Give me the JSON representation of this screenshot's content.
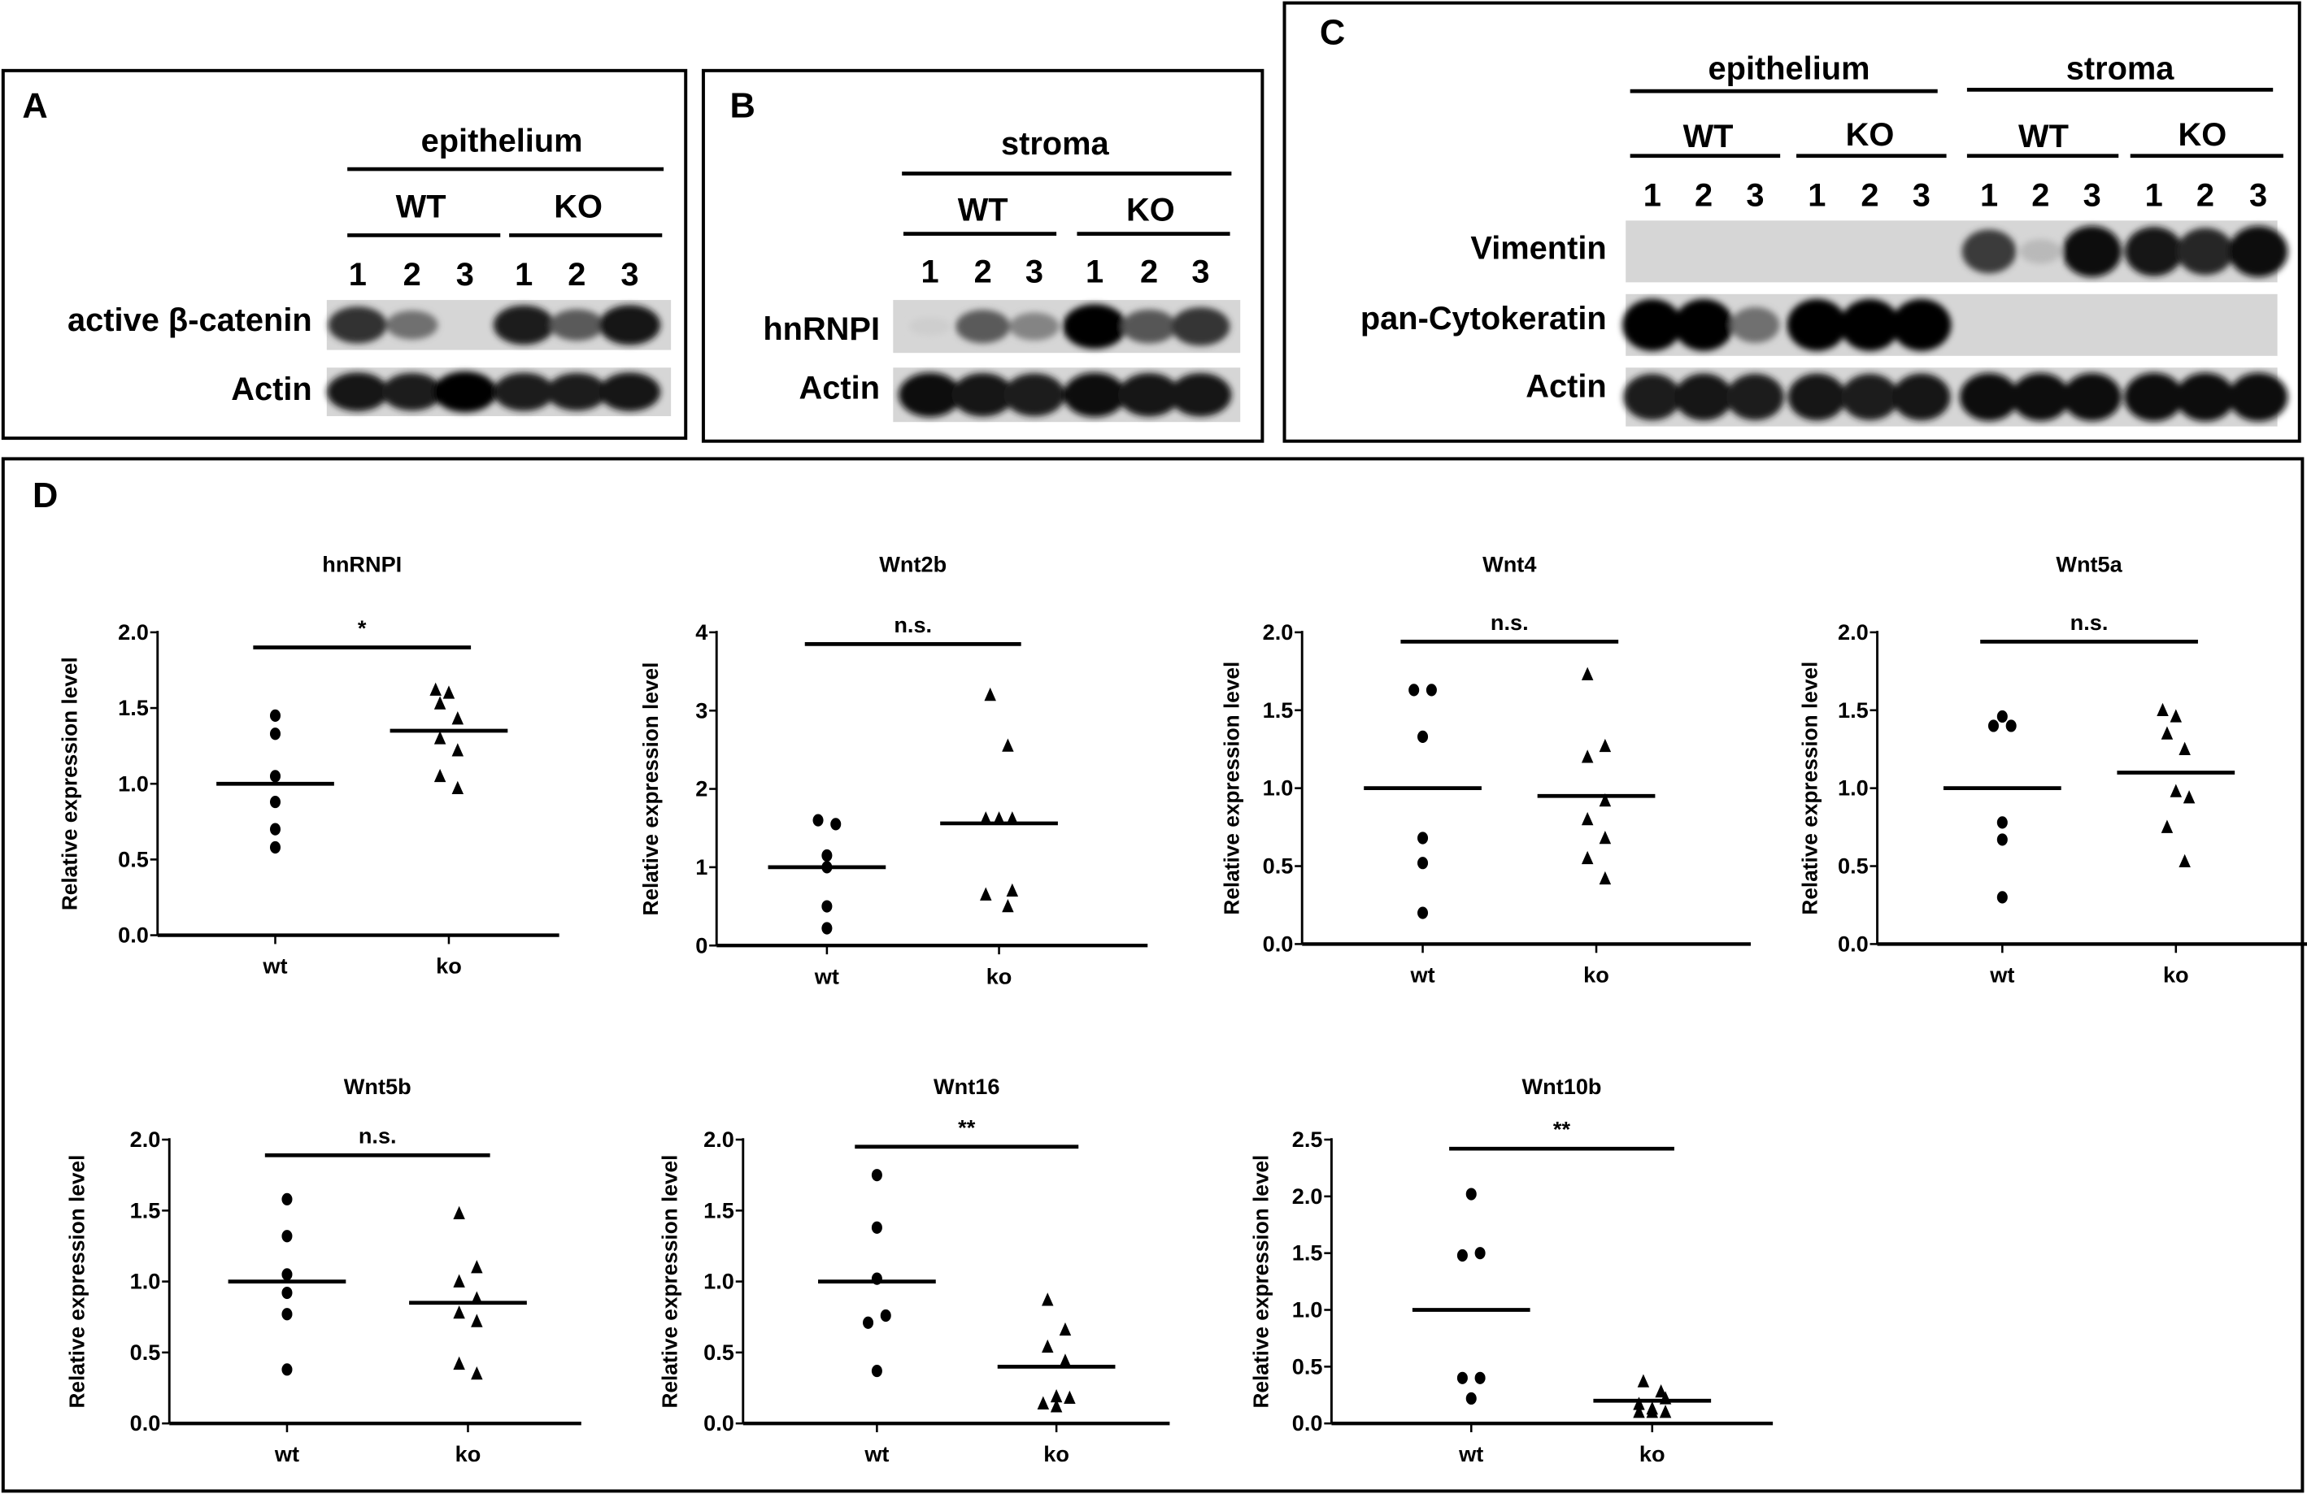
{
  "panels": {
    "A": {
      "letter": "A",
      "header": "epithelium",
      "groups": [
        "WT",
        "KO"
      ],
      "lanes": [
        "1",
        "2",
        "3",
        "1",
        "2",
        "3"
      ],
      "rows": [
        {
          "label": "active β-catenin",
          "band_intensity": [
            0.8,
            0.5,
            0.0,
            0.9,
            0.6,
            0.92
          ]
        },
        {
          "label": "Actin",
          "band_intensity": [
            0.92,
            0.88,
            1.0,
            0.9,
            0.88,
            0.92
          ]
        }
      ]
    },
    "B": {
      "letter": "B",
      "header": "stroma",
      "groups": [
        "WT",
        "KO"
      ],
      "lanes": [
        "1",
        "2",
        "3",
        "1",
        "2",
        "3"
      ],
      "rows": [
        {
          "label": "hnRNPI",
          "band_intensity": [
            0.05,
            0.6,
            0.4,
            1.0,
            0.62,
            0.78
          ]
        },
        {
          "label": "Actin",
          "band_intensity": [
            0.95,
            0.92,
            0.9,
            0.95,
            0.92,
            0.92
          ]
        }
      ]
    },
    "C": {
      "letter": "C",
      "headers": [
        "epithelium",
        "stroma"
      ],
      "groups": [
        "WT",
        "KO",
        "WT",
        "KO"
      ],
      "lanes": [
        "1",
        "2",
        "3",
        "1",
        "2",
        "3",
        "1",
        "2",
        "3",
        "1",
        "2",
        "3"
      ],
      "rows": [
        {
          "label": "Vimentin",
          "band_intensity": [
            0,
            0,
            0,
            0,
            0,
            0,
            0.75,
            0.15,
            0.97,
            0.92,
            0.85,
            0.97
          ]
        },
        {
          "label": "pan-Cytokeratin",
          "band_intensity": [
            1,
            1,
            0.5,
            1,
            1,
            1,
            0,
            0,
            0,
            0,
            0,
            0
          ]
        },
        {
          "label": "Actin",
          "band_intensity": [
            0.9,
            0.92,
            0.9,
            0.92,
            0.9,
            0.92,
            0.95,
            0.95,
            0.95,
            0.97,
            0.97,
            0.97
          ]
        }
      ]
    },
    "D": {
      "letter": "D"
    }
  },
  "chart_data": [
    {
      "type": "scatter",
      "title": "hnRNPI",
      "ylabel": "Relative expression level",
      "categories": [
        "wt",
        "ko"
      ],
      "ylim": [
        0,
        2.0
      ],
      "yticks": [
        "0.0",
        "0.5",
        "1.0",
        "1.5",
        "2.0"
      ],
      "yticks_values": [
        0,
        0.5,
        1.0,
        1.5,
        2.0
      ],
      "wt": [
        1.45,
        1.33,
        1.05,
        0.88,
        0.7,
        0.58
      ],
      "ko": [
        1.62,
        1.6,
        1.53,
        1.43,
        1.3,
        1.22,
        1.05,
        0.97
      ],
      "mean": [
        1.0,
        1.35
      ],
      "significance": "*",
      "sig_y": 1.9
    },
    {
      "type": "scatter",
      "title": "Wnt2b",
      "ylabel": "Relative expression level",
      "categories": [
        "wt",
        "ko"
      ],
      "ylim": [
        0,
        4
      ],
      "yticks": [
        "0",
        "1",
        "2",
        "3",
        "4"
      ],
      "yticks_values": [
        0,
        1,
        2,
        3,
        4
      ],
      "wt": [
        1.6,
        1.55,
        1.15,
        1.0,
        0.5,
        0.22
      ],
      "ko": [
        3.2,
        2.55,
        1.62,
        1.62,
        1.62,
        0.7,
        0.65,
        0.5
      ],
      "mean": [
        1.0,
        1.56
      ],
      "significance": "n.s.",
      "sig_y": 3.85
    },
    {
      "type": "scatter",
      "title": "Wnt4",
      "ylabel": "Relative expression level",
      "categories": [
        "wt",
        "ko"
      ],
      "ylim": [
        0,
        2.0
      ],
      "yticks": [
        "0.0",
        "0.5",
        "1.0",
        "1.5",
        "2.0"
      ],
      "yticks_values": [
        0,
        0.5,
        1.0,
        1.5,
        2.0
      ],
      "wt": [
        1.63,
        1.63,
        1.33,
        0.68,
        0.52,
        0.2
      ],
      "ko": [
        1.73,
        1.27,
        1.2,
        0.92,
        0.8,
        0.68,
        0.55,
        0.42
      ],
      "mean": [
        1.0,
        0.95
      ],
      "significance": "n.s.",
      "sig_y": 1.94
    },
    {
      "type": "scatter",
      "title": "Wnt5a",
      "ylabel": "Relative expression level",
      "categories": [
        "wt",
        "ko"
      ],
      "ylim": [
        0,
        2.0
      ],
      "yticks": [
        "0.0",
        "0.5",
        "1.0",
        "1.5",
        "2.0"
      ],
      "yticks_values": [
        0,
        0.5,
        1.0,
        1.5,
        2.0
      ],
      "wt": [
        1.46,
        1.4,
        1.4,
        0.78,
        0.67,
        0.3
      ],
      "ko": [
        1.5,
        1.46,
        1.35,
        1.25,
        0.98,
        0.94,
        0.75,
        0.53
      ],
      "mean": [
        1.0,
        1.1
      ],
      "significance": "n.s.",
      "sig_y": 1.94
    },
    {
      "type": "scatter",
      "title": "Wnt5b",
      "ylabel": "Relative expression level",
      "categories": [
        "wt",
        "ko"
      ],
      "ylim": [
        0,
        2.0
      ],
      "yticks": [
        "0.0",
        "0.5",
        "1.0",
        "1.5",
        "2.0"
      ],
      "yticks_values": [
        0,
        0.5,
        1.0,
        1.5,
        2.0
      ],
      "wt": [
        1.58,
        1.32,
        1.05,
        0.92,
        0.77,
        0.38
      ],
      "ko": [
        1.48,
        1.1,
        1.0,
        0.88,
        0.78,
        0.72,
        0.42,
        0.35
      ],
      "mean": [
        1.0,
        0.85
      ],
      "significance": "n.s.",
      "sig_y": 1.89
    },
    {
      "type": "scatter",
      "title": "Wnt16",
      "ylabel": "Relative expression level",
      "categories": [
        "wt",
        "ko"
      ],
      "ylim": [
        0,
        2.0
      ],
      "yticks": [
        "0.0",
        "0.5",
        "1.0",
        "1.5",
        "2.0"
      ],
      "yticks_values": [
        0,
        0.5,
        1.0,
        1.5,
        2.0
      ],
      "wt": [
        1.75,
        1.38,
        1.02,
        0.76,
        0.71,
        0.37
      ],
      "ko": [
        0.87,
        0.66,
        0.54,
        0.44,
        0.19,
        0.18,
        0.14,
        0.12
      ],
      "mean": [
        1.0,
        0.4
      ],
      "significance": "**",
      "sig_y": 1.95
    },
    {
      "type": "scatter",
      "title": "Wnt10b",
      "ylabel": "Relative expression level",
      "categories": [
        "wt",
        "ko"
      ],
      "ylim": [
        0,
        2.5
      ],
      "yticks": [
        "0.0",
        "0.5",
        "1.0",
        "1.5",
        "2.0",
        "2.5"
      ],
      "yticks_values": [
        0,
        0.5,
        1.0,
        1.5,
        2.0,
        2.5
      ],
      "wt": [
        2.02,
        1.5,
        1.48,
        0.4,
        0.4,
        0.22
      ],
      "ko": [
        0.37,
        0.28,
        0.22,
        0.17,
        0.13,
        0.1,
        0.1,
        0.1
      ],
      "mean": [
        1.0,
        0.2
      ],
      "significance": "**",
      "sig_y": 2.42
    }
  ]
}
